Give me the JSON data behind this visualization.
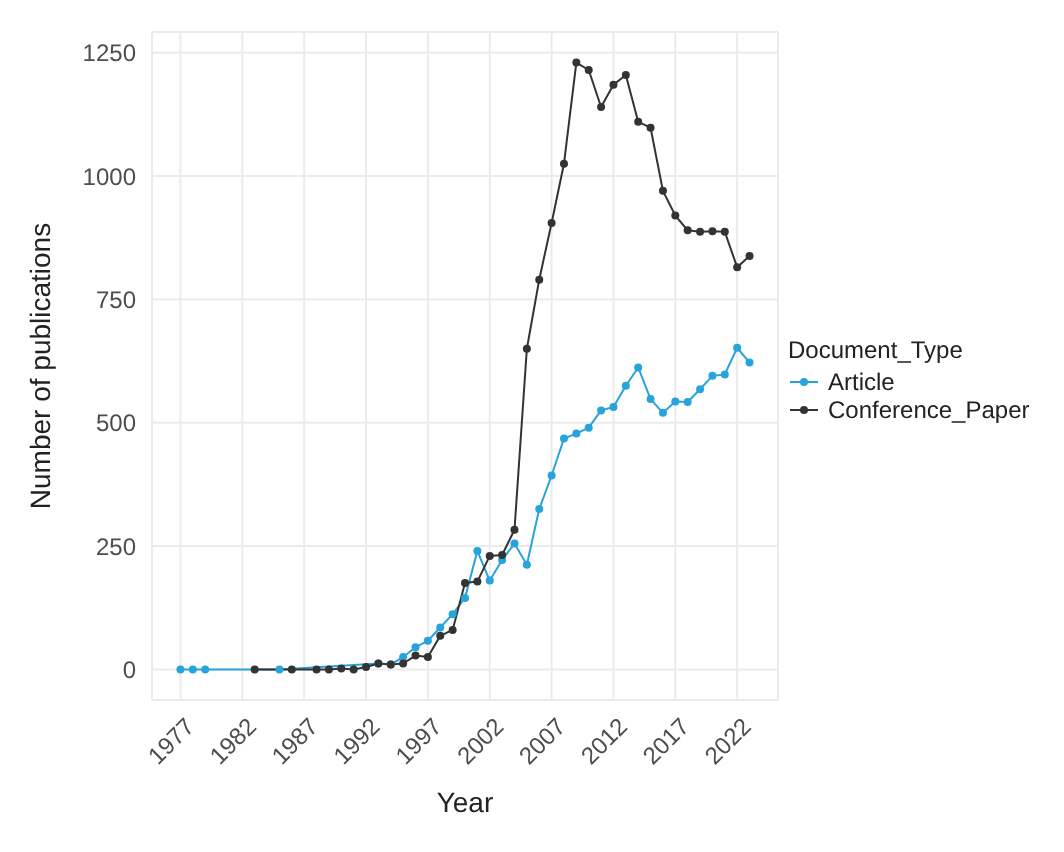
{
  "chart_data": {
    "type": "line",
    "xlabel": "Year",
    "ylabel": "Number of publications",
    "legend_title": "Document_Type",
    "legend": "right",
    "grid": true,
    "marker": "circle",
    "line_style": "solid",
    "xlim": [
      1974.7,
      2025.3
    ],
    "xticks": [
      1977,
      1982,
      1987,
      1992,
      1997,
      2002,
      2007,
      2012,
      2017,
      2022
    ],
    "ylim": [
      -62,
      1292
    ],
    "yticks": [
      0,
      250,
      500,
      750,
      1000,
      1250
    ],
    "series": [
      {
        "name": "Article",
        "color": "#29a3dc",
        "x": [
          1977,
          1978,
          1979,
          1985,
          1993,
          1994,
          1995,
          1996,
          1997,
          1998,
          1999,
          2000,
          2001,
          2002,
          2003,
          2004,
          2005,
          2006,
          2007,
          2008,
          2009,
          2010,
          2011,
          2012,
          2013,
          2014,
          2015,
          2016,
          2017,
          2018,
          2019,
          2020,
          2021,
          2022,
          2023
        ],
        "values": [
          0,
          0,
          0,
          0,
          12,
          10,
          25,
          45,
          58,
          85,
          112,
          145,
          240,
          180,
          222,
          255,
          212,
          325,
          393,
          468,
          478,
          490,
          525,
          532,
          575,
          612,
          548,
          520,
          543,
          542,
          568,
          595,
          598,
          652,
          622
        ]
      },
      {
        "name": "Conference_Paper",
        "color": "#333333",
        "x": [
          1983,
          1986,
          1988,
          1989,
          1990,
          1991,
          1992,
          1993,
          1994,
          1995,
          1996,
          1997,
          1998,
          1999,
          2000,
          2001,
          2002,
          2003,
          2004,
          2005,
          2006,
          2007,
          2008,
          2009,
          2010,
          2011,
          2012,
          2013,
          2014,
          2015,
          2016,
          2017,
          2018,
          2019,
          2020,
          2021,
          2022,
          2023
        ],
        "values": [
          0,
          0,
          0,
          0,
          2,
          0,
          5,
          12,
          10,
          12,
          28,
          25,
          68,
          80,
          175,
          178,
          230,
          232,
          283,
          650,
          790,
          905,
          1025,
          1230,
          1215,
          1140,
          1185,
          1205,
          1110,
          1098,
          970,
          920,
          890,
          887,
          888,
          887,
          815,
          838
        ]
      }
    ]
  }
}
